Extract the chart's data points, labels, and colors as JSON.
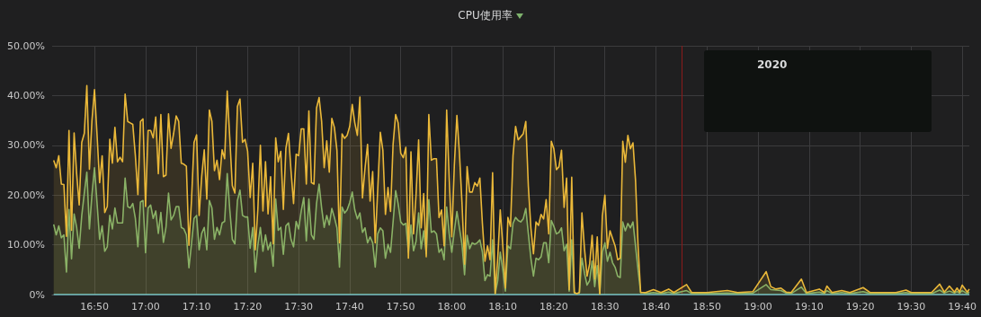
{
  "chart_data": {
    "type": "area",
    "title": "CPU使用率",
    "grid": true,
    "marker": "none",
    "xlim": [
      16.695,
      19.69
    ],
    "xticks": [
      {
        "value": 16.8333,
        "label": "16:50"
      },
      {
        "value": 17,
        "label": "17:00"
      },
      {
        "value": 17.1667,
        "label": "17:10"
      },
      {
        "value": 17.3333,
        "label": "17:20"
      },
      {
        "value": 17.5,
        "label": "17:30"
      },
      {
        "value": 17.6667,
        "label": "17:40"
      },
      {
        "value": 17.8333,
        "label": "17:50"
      },
      {
        "value": 18,
        "label": "18:00"
      },
      {
        "value": 18.1667,
        "label": "18:10"
      },
      {
        "value": 18.3333,
        "label": "18:20"
      },
      {
        "value": 18.5,
        "label": "18:30"
      },
      {
        "value": 18.6667,
        "label": "18:40"
      },
      {
        "value": 18.8333,
        "label": "18:50"
      },
      {
        "value": 19,
        "label": "19:00"
      },
      {
        "value": 19.1667,
        "label": "19:10"
      },
      {
        "value": 19.3333,
        "label": "19:20"
      },
      {
        "value": 19.5,
        "label": "19:30"
      },
      {
        "value": 19.6667,
        "label": "19:40"
      }
    ],
    "ylim": [
      0,
      50
    ],
    "yticks": [
      {
        "value": 0,
        "label": "0%"
      },
      {
        "value": 10,
        "label": "10.00%"
      },
      {
        "value": 20,
        "label": "20.00%"
      },
      {
        "value": 30,
        "label": "30.00%"
      },
      {
        "value": 40,
        "label": "40.00%"
      },
      {
        "value": 50,
        "label": "50.00%"
      }
    ],
    "ref_lines": [
      {
        "axis": "x",
        "value": 18.75,
        "color": "#8b1a1a"
      }
    ],
    "annotations": [
      "2020"
    ],
    "x": [
      16.7,
      16.7083,
      16.7167,
      16.725,
      16.7333,
      16.7417,
      16.75,
      16.7583,
      16.7667,
      16.775,
      16.7833,
      16.7917,
      16.8,
      16.8083,
      16.8167,
      16.825,
      16.8333,
      16.8417,
      16.85,
      16.8583,
      16.8667,
      16.875,
      16.8833,
      16.8917,
      16.9,
      16.9083,
      16.9167,
      16.925,
      16.9333,
      16.9417,
      16.95,
      16.9583,
      16.9667,
      16.975,
      16.9833,
      16.9917,
      17,
      17.0083,
      17.0167,
      17.025,
      17.0333,
      17.0417,
      17.05,
      17.0583,
      17.0667,
      17.075,
      17.0833,
      17.0917,
      17.1,
      17.1083,
      17.1167,
      17.125,
      17.1333,
      17.1417,
      17.15,
      17.1583,
      17.1667,
      17.175,
      17.1833,
      17.1917,
      17.2,
      17.2083,
      17.2167,
      17.225,
      17.2333,
      17.2417,
      17.25,
      17.2583,
      17.2667,
      17.275,
      17.2833,
      17.2917,
      17.3,
      17.3083,
      17.3167,
      17.325,
      17.3333,
      17.3417,
      17.35,
      17.3583,
      17.3667,
      17.375,
      17.3833,
      17.3917,
      17.4,
      17.4083,
      17.4167,
      17.425,
      17.4333,
      17.4417,
      17.45,
      17.4583,
      17.4667,
      17.475,
      17.4833,
      17.4917,
      17.5,
      17.5083,
      17.5167,
      17.525,
      17.5333,
      17.5417,
      17.55,
      17.5583,
      17.5667,
      17.575,
      17.5833,
      17.5917,
      17.6,
      17.6083,
      17.6167,
      17.625,
      17.6333,
      17.6417,
      17.65,
      17.6583,
      17.6667,
      17.675,
      17.6833,
      17.6917,
      17.7,
      17.7083,
      17.7167,
      17.725,
      17.7333,
      17.7417,
      17.75,
      17.7583,
      17.7667,
      17.775,
      17.7833,
      17.7917,
      17.8,
      17.8083,
      17.8167,
      17.825,
      17.8333,
      17.8417,
      17.85,
      17.8583,
      17.8667,
      17.875,
      17.8833,
      17.8917,
      17.9,
      17.9083,
      17.9167,
      17.925,
      17.9333,
      17.9417,
      17.95,
      17.9583,
      17.9667,
      17.975,
      17.9833,
      17.9917,
      18,
      18.0083,
      18.0167,
      18.025,
      18.0333,
      18.0417,
      18.05,
      18.0583,
      18.0667,
      18.075,
      18.0833,
      18.0917,
      18.1,
      18.1083,
      18.1167,
      18.125,
      18.1333,
      18.1417,
      18.15,
      18.1583,
      18.1667,
      18.175,
      18.1833,
      18.1917,
      18.2,
      18.2083,
      18.2167,
      18.225,
      18.2333,
      18.2417,
      18.25,
      18.2583,
      18.2667,
      18.275,
      18.2833,
      18.2917,
      18.3,
      18.3083,
      18.3167,
      18.325,
      18.3333,
      18.3417,
      18.35,
      18.3583,
      18.3667,
      18.375,
      18.3833,
      18.3917,
      18.4,
      18.4083,
      18.4167,
      18.425,
      18.4333,
      18.4417,
      18.45,
      18.4583,
      18.4667,
      18.475,
      18.4833,
      18.4917,
      18.5,
      18.5083,
      18.5167,
      18.525,
      18.5333,
      18.5417,
      18.55,
      18.5583,
      18.5667,
      18.575,
      18.5833,
      18.5917,
      18.6,
      18.6083,
      18.6167,
      18.625,
      18.6333,
      18.6583,
      18.6833,
      18.7083,
      18.725,
      18.7667,
      18.7833,
      18.8333,
      18.9,
      18.9333,
      18.9833,
      19.0267,
      19.0417,
      19.0583,
      19.075,
      19.0917,
      19.1083,
      19.1417,
      19.1583,
      19.2,
      19.2167,
      19.225,
      19.2417,
      19.2733,
      19.3,
      19.3433,
      19.3667,
      19.45,
      19.4833,
      19.5,
      19.5667,
      19.5933,
      19.6083,
      19.625,
      19.6417,
      19.65,
      19.6583,
      19.6667,
      19.6833,
      19.69
    ],
    "series": [
      {
        "color": "#eab839",
        "values": [
          27,
          25.5,
          27.9,
          22.2,
          22.1,
          11.7,
          33,
          12.9,
          32.5,
          24.3,
          18,
          30.6,
          32.4,
          42,
          25.2,
          35,
          41.2,
          32,
          22.5,
          27.9,
          16.5,
          17.7,
          31.2,
          26.4,
          33.6,
          26.7,
          27.6,
          26.7,
          40.3,
          34.8,
          34.5,
          34.2,
          27.9,
          20.1,
          34.8,
          35.3,
          17.7,
          33,
          33,
          31.5,
          35.7,
          24.3,
          36.2,
          23.7,
          24,
          36.3,
          29.4,
          32.4,
          35.9,
          34.8,
          26.4,
          26.2,
          25.8,
          9.9,
          18.9,
          30.6,
          32.1,
          15.9,
          23.7,
          29.1,
          19.2,
          37.1,
          34.8,
          24.9,
          27,
          23.1,
          29.1,
          27.3,
          40.9,
          31.5,
          21.9,
          20.4,
          37.8,
          39.3,
          30.6,
          31.2,
          28.8,
          19.5,
          26.4,
          9,
          17.1,
          30,
          16.8,
          26.7,
          16.2,
          23.7,
          10.2,
          31.5,
          26.7,
          28.8,
          17.1,
          29.4,
          32.4,
          24.9,
          18.3,
          28.2,
          27.9,
          33.3,
          33.3,
          22.2,
          36.9,
          22.5,
          22.2,
          37.5,
          39.6,
          34.8,
          25.5,
          30.9,
          24.6,
          35.4,
          33.6,
          29,
          10.4,
          32.3,
          31.4,
          32,
          33.8,
          38.2,
          34.5,
          32,
          39.7,
          19.4,
          25.4,
          30.2,
          18.8,
          24.7,
          10.4,
          21.2,
          32.6,
          29,
          16.1,
          21.5,
          16.7,
          30.2,
          36.2,
          34.5,
          28.4,
          27.5,
          29.6,
          7.3,
          28.7,
          12.2,
          20,
          31.1,
          13.4,
          20.3,
          7.6,
          36.2,
          27,
          27.3,
          27.3,
          15.5,
          17,
          9.8,
          37.1,
          23.1,
          11.6,
          26,
          36,
          28.4,
          18.5,
          6.1,
          25.7,
          20.6,
          20.6,
          22.5,
          21.8,
          23.4,
          14.3,
          6.7,
          9.8,
          7,
          24.5,
          0.2,
          7.3,
          17,
          9.8,
          1.3,
          15.5,
          13.7,
          27.9,
          33.8,
          31.1,
          31.7,
          32.3,
          34.8,
          21.8,
          13.4,
          8.2,
          14.6,
          13.9,
          16.1,
          15.2,
          19.1,
          12.2,
          30.8,
          29.3,
          25.1,
          25.7,
          29,
          17.5,
          23.4,
          1,
          23.6,
          0.4,
          0.2,
          0.4,
          16.4,
          9.3,
          3.7,
          6.1,
          11.9,
          3.1,
          11.6,
          0.1,
          15.8,
          20,
          9.3,
          12.8,
          11.3,
          9.8,
          7,
          7.3,
          30.8,
          26.6,
          32,
          29.3,
          30.5,
          23,
          9.8,
          0.4,
          0.4,
          0.4,
          1,
          0.4,
          1.1,
          0.4,
          2,
          0.4,
          0.4,
          0.8,
          0.4,
          0.6,
          4.6,
          1.6,
          1.1,
          1.3,
          0.5,
          0.4,
          3.1,
          0.4,
          1.1,
          0.4,
          1.7,
          0.4,
          0.8,
          0.4,
          1.4,
          0.4,
          0.4,
          0.9,
          0.4,
          0.4,
          2.1,
          0.5,
          1.7,
          0.5,
          1.3,
          0.5,
          1.9,
          0.5,
          1.1
        ]
      },
      {
        "color": "#7eb26d",
        "values": [
          14.1,
          12,
          13.8,
          11.4,
          12,
          4.5,
          17.1,
          7.2,
          16.2,
          13.5,
          9.3,
          15.9,
          20.4,
          24.6,
          13.2,
          20.1,
          25.5,
          18.3,
          11.1,
          13.8,
          8.7,
          9.6,
          15.9,
          13.2,
          17.4,
          14.4,
          14.4,
          14.4,
          23.4,
          17.7,
          17.4,
          18.3,
          15.3,
          9.6,
          18.6,
          18.9,
          8.4,
          17.4,
          18,
          15.3,
          16.8,
          12.3,
          16.5,
          10.5,
          13.5,
          20.4,
          15,
          15.9,
          17.7,
          17.7,
          13.5,
          13.2,
          12,
          5.4,
          10.2,
          15.3,
          15.9,
          9,
          12.3,
          13.5,
          9,
          18.9,
          17.4,
          11.1,
          13.5,
          12,
          14.4,
          14.7,
          24.3,
          17.1,
          11.1,
          10.2,
          18.9,
          21,
          15.9,
          15.6,
          15.6,
          9.3,
          13.5,
          4.5,
          9.9,
          13.5,
          8.7,
          12,
          9,
          10.5,
          5.7,
          19.2,
          12.9,
          13.5,
          8.1,
          13.8,
          14.4,
          11.1,
          9.6,
          14.7,
          13.2,
          16.8,
          19.5,
          10.8,
          19.2,
          12,
          11.1,
          18.3,
          22.2,
          17.4,
          13.5,
          15.9,
          14,
          17.3,
          15.5,
          13.4,
          5.5,
          17.6,
          16.4,
          17,
          18.5,
          20.6,
          17,
          15.2,
          16.4,
          12.5,
          13.4,
          10.4,
          11.6,
          10.4,
          5.5,
          12.2,
          13.4,
          12.8,
          7.3,
          10.1,
          8.5,
          14.6,
          20.9,
          18.2,
          14.6,
          14,
          14.3,
          8.5,
          14,
          8.8,
          10.7,
          16.4,
          9.2,
          12.8,
          8.2,
          19.1,
          12.5,
          12.8,
          12.2,
          8.5,
          9.2,
          7,
          17.6,
          12.2,
          8.5,
          12.8,
          16.7,
          13.4,
          10.1,
          4,
          11.9,
          9.2,
          10.4,
          10.1,
          10.4,
          11,
          8.5,
          2.8,
          4,
          3.7,
          11,
          0.2,
          2.8,
          8.5,
          5,
          0.7,
          9.8,
          9.2,
          14.3,
          15.5,
          14.9,
          14.6,
          15.2,
          17.3,
          12.2,
          7.3,
          3.7,
          7.3,
          7,
          7.6,
          10.4,
          10.4,
          6.4,
          14.9,
          13.7,
          12.2,
          12.5,
          13.4,
          8.8,
          10.1,
          0.7,
          11,
          0.4,
          0.2,
          0.4,
          7.3,
          4.3,
          1.9,
          2.8,
          6.7,
          1.6,
          5.8,
          0.1,
          8.5,
          10.4,
          6.7,
          8.5,
          6.4,
          5.5,
          3.7,
          3.4,
          14.6,
          12.8,
          14.3,
          13.4,
          14.6,
          9.8,
          5,
          0.4,
          0.4,
          0.2,
          0.4,
          0.2,
          0.5,
          0.2,
          0.8,
          0.2,
          0.2,
          0.3,
          0.2,
          0.3,
          2,
          1,
          0.9,
          0.8,
          0.3,
          0.2,
          1.5,
          0.2,
          0.5,
          0.2,
          0.8,
          0.2,
          0.4,
          0.2,
          0.6,
          0.2,
          0.2,
          0.4,
          0.2,
          0.2,
          0.9,
          0.3,
          0.7,
          0.3,
          0.6,
          0.3,
          0.8,
          0.2,
          0.5
        ]
      },
      {
        "type": "line",
        "color": "#6ed0e0",
        "x": [
          16.7,
          19.69
        ],
        "values": [
          0,
          0
        ]
      }
    ]
  }
}
